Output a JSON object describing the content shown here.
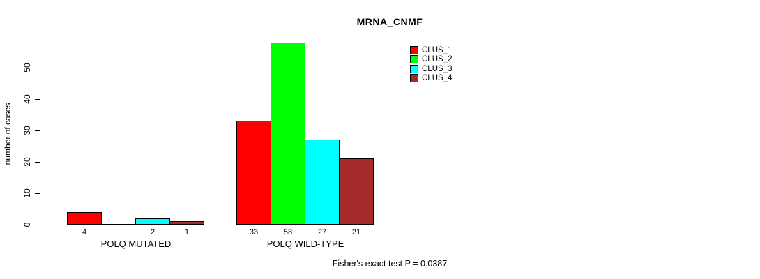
{
  "chart_data": {
    "type": "bar",
    "title": "MRNA_CNMF",
    "ylabel": "number of cases",
    "xlabel": "",
    "groups": [
      "POLQ MUTATED",
      "POLQ WILD-TYPE"
    ],
    "series": [
      {
        "name": "CLUS_1",
        "color": "#ff0000",
        "values": [
          4,
          33
        ]
      },
      {
        "name": "CLUS_2",
        "color": "#00ff00",
        "values": [
          0,
          58
        ]
      },
      {
        "name": "CLUS_3",
        "color": "#00ffff",
        "values": [
          2,
          27
        ]
      },
      {
        "name": "CLUS_4",
        "color": "#a52a2a",
        "values": [
          1,
          21
        ]
      }
    ],
    "yticks": [
      0,
      10,
      20,
      30,
      40,
      50
    ],
    "ylim": [
      0,
      58
    ],
    "grid": false,
    "show_zero_value_labels": false,
    "bar_border_color": "#000000",
    "background": "#ffffff",
    "text_color": "#000000",
    "legend_position": "top-right",
    "footer": "Fisher's exact test P = 0.0387"
  }
}
